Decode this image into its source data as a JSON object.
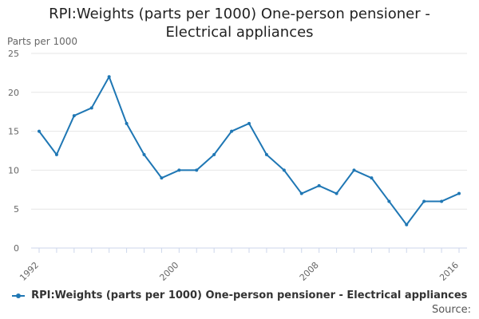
{
  "chart_data": {
    "type": "line",
    "title_line1": "RPI:Weights (parts per 1000) One-person pensioner -",
    "title_line2": "Electrical appliances",
    "ylabel": "Parts per 1000",
    "xlabel": "",
    "ylim": [
      0,
      25
    ],
    "yticks": [
      0,
      5,
      10,
      15,
      20,
      25
    ],
    "xlim": [
      1992,
      2016
    ],
    "xticks": [
      1992,
      2000,
      2008,
      2016
    ],
    "grid": true,
    "legend_position": "bottom",
    "series": [
      {
        "name": "RPI:Weights (parts per 1000) One-person pensioner - Electrical appliances",
        "color": "#1f77b4",
        "x": [
          1992,
          1993,
          1994,
          1995,
          1996,
          1997,
          1998,
          1999,
          2000,
          2001,
          2002,
          2003,
          2004,
          2005,
          2006,
          2007,
          2008,
          2009,
          2010,
          2011,
          2012,
          2013,
          2014,
          2015,
          2016
        ],
        "y": [
          15,
          12,
          17,
          18,
          22,
          16,
          12,
          9,
          10,
          10,
          12,
          15,
          16,
          12,
          10,
          7,
          8,
          7,
          10,
          9,
          6,
          3,
          6,
          6,
          7
        ]
      }
    ],
    "source_label": "Source:"
  }
}
